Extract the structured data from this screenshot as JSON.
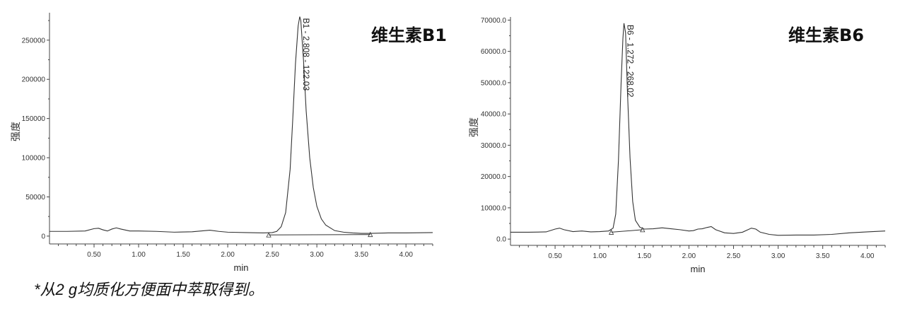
{
  "chart_data": [
    {
      "type": "line",
      "title": "维生素B1",
      "xlabel": "min",
      "ylabel": "强度",
      "xlim": [
        0,
        4.3
      ],
      "ylim": [
        -10000,
        285000
      ],
      "xticks": [
        0.5,
        1.0,
        1.5,
        2.0,
        2.5,
        3.0,
        3.5,
        4.0
      ],
      "xtick_labels": [
        "0.50",
        "1.00",
        "1.50",
        "2.00",
        "2.50",
        "3.00",
        "3.50",
        "4.00"
      ],
      "yticks": [
        0,
        50000,
        100000,
        150000,
        200000,
        250000
      ],
      "ytick_labels": [
        "0",
        "50000",
        "100000",
        "150000",
        "200000",
        "250000"
      ],
      "grid": false,
      "series": [
        {
          "x": [
            0.0,
            0.2,
            0.4,
            0.5,
            0.55,
            0.6,
            0.65,
            0.7,
            0.75,
            0.8,
            0.9,
            1.0,
            1.2,
            1.4,
            1.6,
            1.7,
            1.8,
            1.9,
            2.0,
            2.2,
            2.4,
            2.5,
            2.55,
            2.6,
            2.65,
            2.7,
            2.73,
            2.76,
            2.79,
            2.808,
            2.82,
            2.85,
            2.88,
            2.92,
            2.96,
            3.0,
            3.05,
            3.1,
            3.2,
            3.3,
            3.4,
            3.5,
            3.6,
            3.8,
            4.0,
            4.3
          ],
          "y": [
            6000,
            6000,
            6500,
            9500,
            10000,
            8000,
            6500,
            9000,
            10500,
            9000,
            6500,
            6500,
            6000,
            5000,
            5500,
            6500,
            7500,
            6000,
            5000,
            4500,
            4000,
            4500,
            6000,
            12000,
            30000,
            85000,
            150000,
            220000,
            268000,
            280000,
            275000,
            225000,
            160000,
            100000,
            62000,
            38000,
            22000,
            14000,
            7000,
            5000,
            4000,
            3500,
            3500,
            4000,
            4000,
            4500
          ]
        }
      ],
      "peak": {
        "x": 2.808,
        "y": 280000,
        "label": "B1 - 2.808 - 122.03"
      },
      "baseline": {
        "start": [
          2.46,
          1500
        ],
        "end": [
          3.6,
          2000
        ]
      }
    },
    {
      "type": "line",
      "title": "维生素B6",
      "xlabel": "min",
      "ylabel": "强度",
      "xlim": [
        0,
        4.2
      ],
      "ylim": [
        -2000,
        71000
      ],
      "xticks": [
        0.5,
        1.0,
        1.5,
        2.0,
        2.5,
        3.0,
        3.5,
        4.0
      ],
      "xtick_labels": [
        "0.50",
        "1.00",
        "1.50",
        "2.00",
        "2.50",
        "3.00",
        "3.50",
        "4.00"
      ],
      "yticks": [
        0,
        10000,
        20000,
        30000,
        40000,
        50000,
        60000,
        70000
      ],
      "ytick_labels": [
        "0.0",
        "10000.0",
        "20000.0",
        "30000.0",
        "40000.0",
        "50000.0",
        "60000.0",
        "70000.0"
      ],
      "grid": false,
      "series": [
        {
          "x": [
            0.0,
            0.2,
            0.4,
            0.5,
            0.55,
            0.6,
            0.7,
            0.8,
            0.9,
            1.0,
            1.1,
            1.15,
            1.18,
            1.21,
            1.24,
            1.26,
            1.272,
            1.29,
            1.31,
            1.34,
            1.37,
            1.4,
            1.45,
            1.5,
            1.6,
            1.7,
            1.8,
            1.9,
            2.0,
            2.05,
            2.1,
            2.15,
            2.2,
            2.25,
            2.3,
            2.4,
            2.5,
            2.6,
            2.7,
            2.75,
            2.8,
            2.9,
            3.0,
            3.2,
            3.4,
            3.6,
            3.8,
            4.0,
            4.2
          ],
          "y": [
            2200,
            2200,
            2300,
            3200,
            3500,
            3000,
            2400,
            2600,
            2300,
            2400,
            2600,
            3500,
            8000,
            25000,
            50000,
            64000,
            69000,
            66000,
            48000,
            26000,
            12000,
            6000,
            3800,
            3200,
            3300,
            3600,
            3300,
            3000,
            2600,
            2700,
            3200,
            3300,
            3700,
            4000,
            3000,
            2000,
            1800,
            2200,
            3500,
            3200,
            2200,
            1500,
            1200,
            1300,
            1300,
            1500,
            2000,
            2300,
            2600
          ]
        }
      ],
      "peak": {
        "x": 1.272,
        "y": 69000,
        "label": "B6 - 1.272 - 268.02"
      },
      "baseline": {
        "start": [
          1.13,
          2200
        ],
        "end": [
          1.48,
          3000
        ]
      }
    }
  ],
  "footnote": "*从2 g均质化方便面中萃取得到。"
}
